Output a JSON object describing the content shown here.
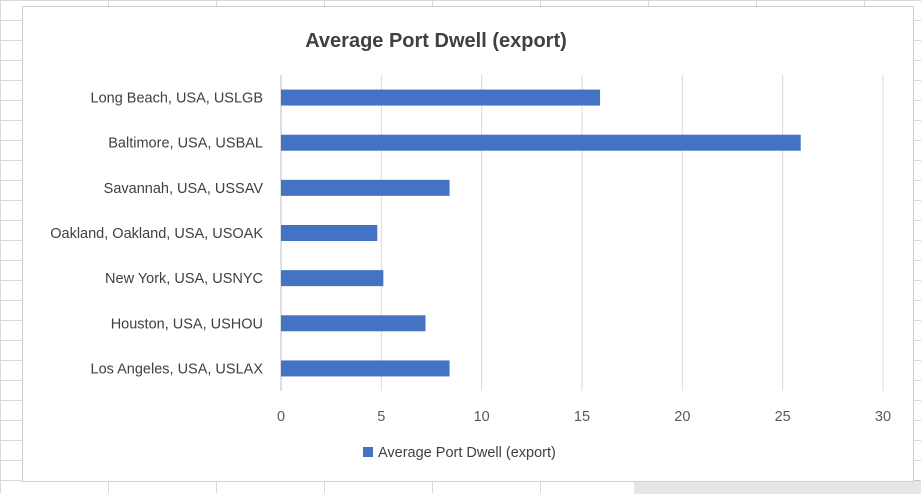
{
  "colors": {
    "bar": "#4472C4",
    "gridline": "#d9d9d9",
    "axis": "#bfbfbf"
  },
  "chart_data": {
    "type": "bar",
    "orientation": "horizontal",
    "title": "Average Port Dwell (export)",
    "categories": [
      "Long Beach, USA, USLGB",
      "Baltimore, USA, USBAL",
      "Savannah, USA, USSAV",
      "Oakland, Oakland, USA, USOAK",
      "New York, USA, USNYC",
      "Houston, USA, USHOU",
      "Los Angeles, USA, USLAX"
    ],
    "series": [
      {
        "name": "Average Port Dwell (export)",
        "values": [
          15.9,
          25.9,
          8.4,
          4.8,
          5.1,
          7.2,
          8.4
        ]
      }
    ],
    "xlim": [
      0,
      30
    ],
    "xticks": [
      0,
      5,
      10,
      15,
      20,
      25,
      30
    ],
    "tick_labels": [
      "0",
      "5",
      "10",
      "15",
      "20",
      "25",
      "30"
    ],
    "grid": true,
    "legend_position": "bottom"
  }
}
